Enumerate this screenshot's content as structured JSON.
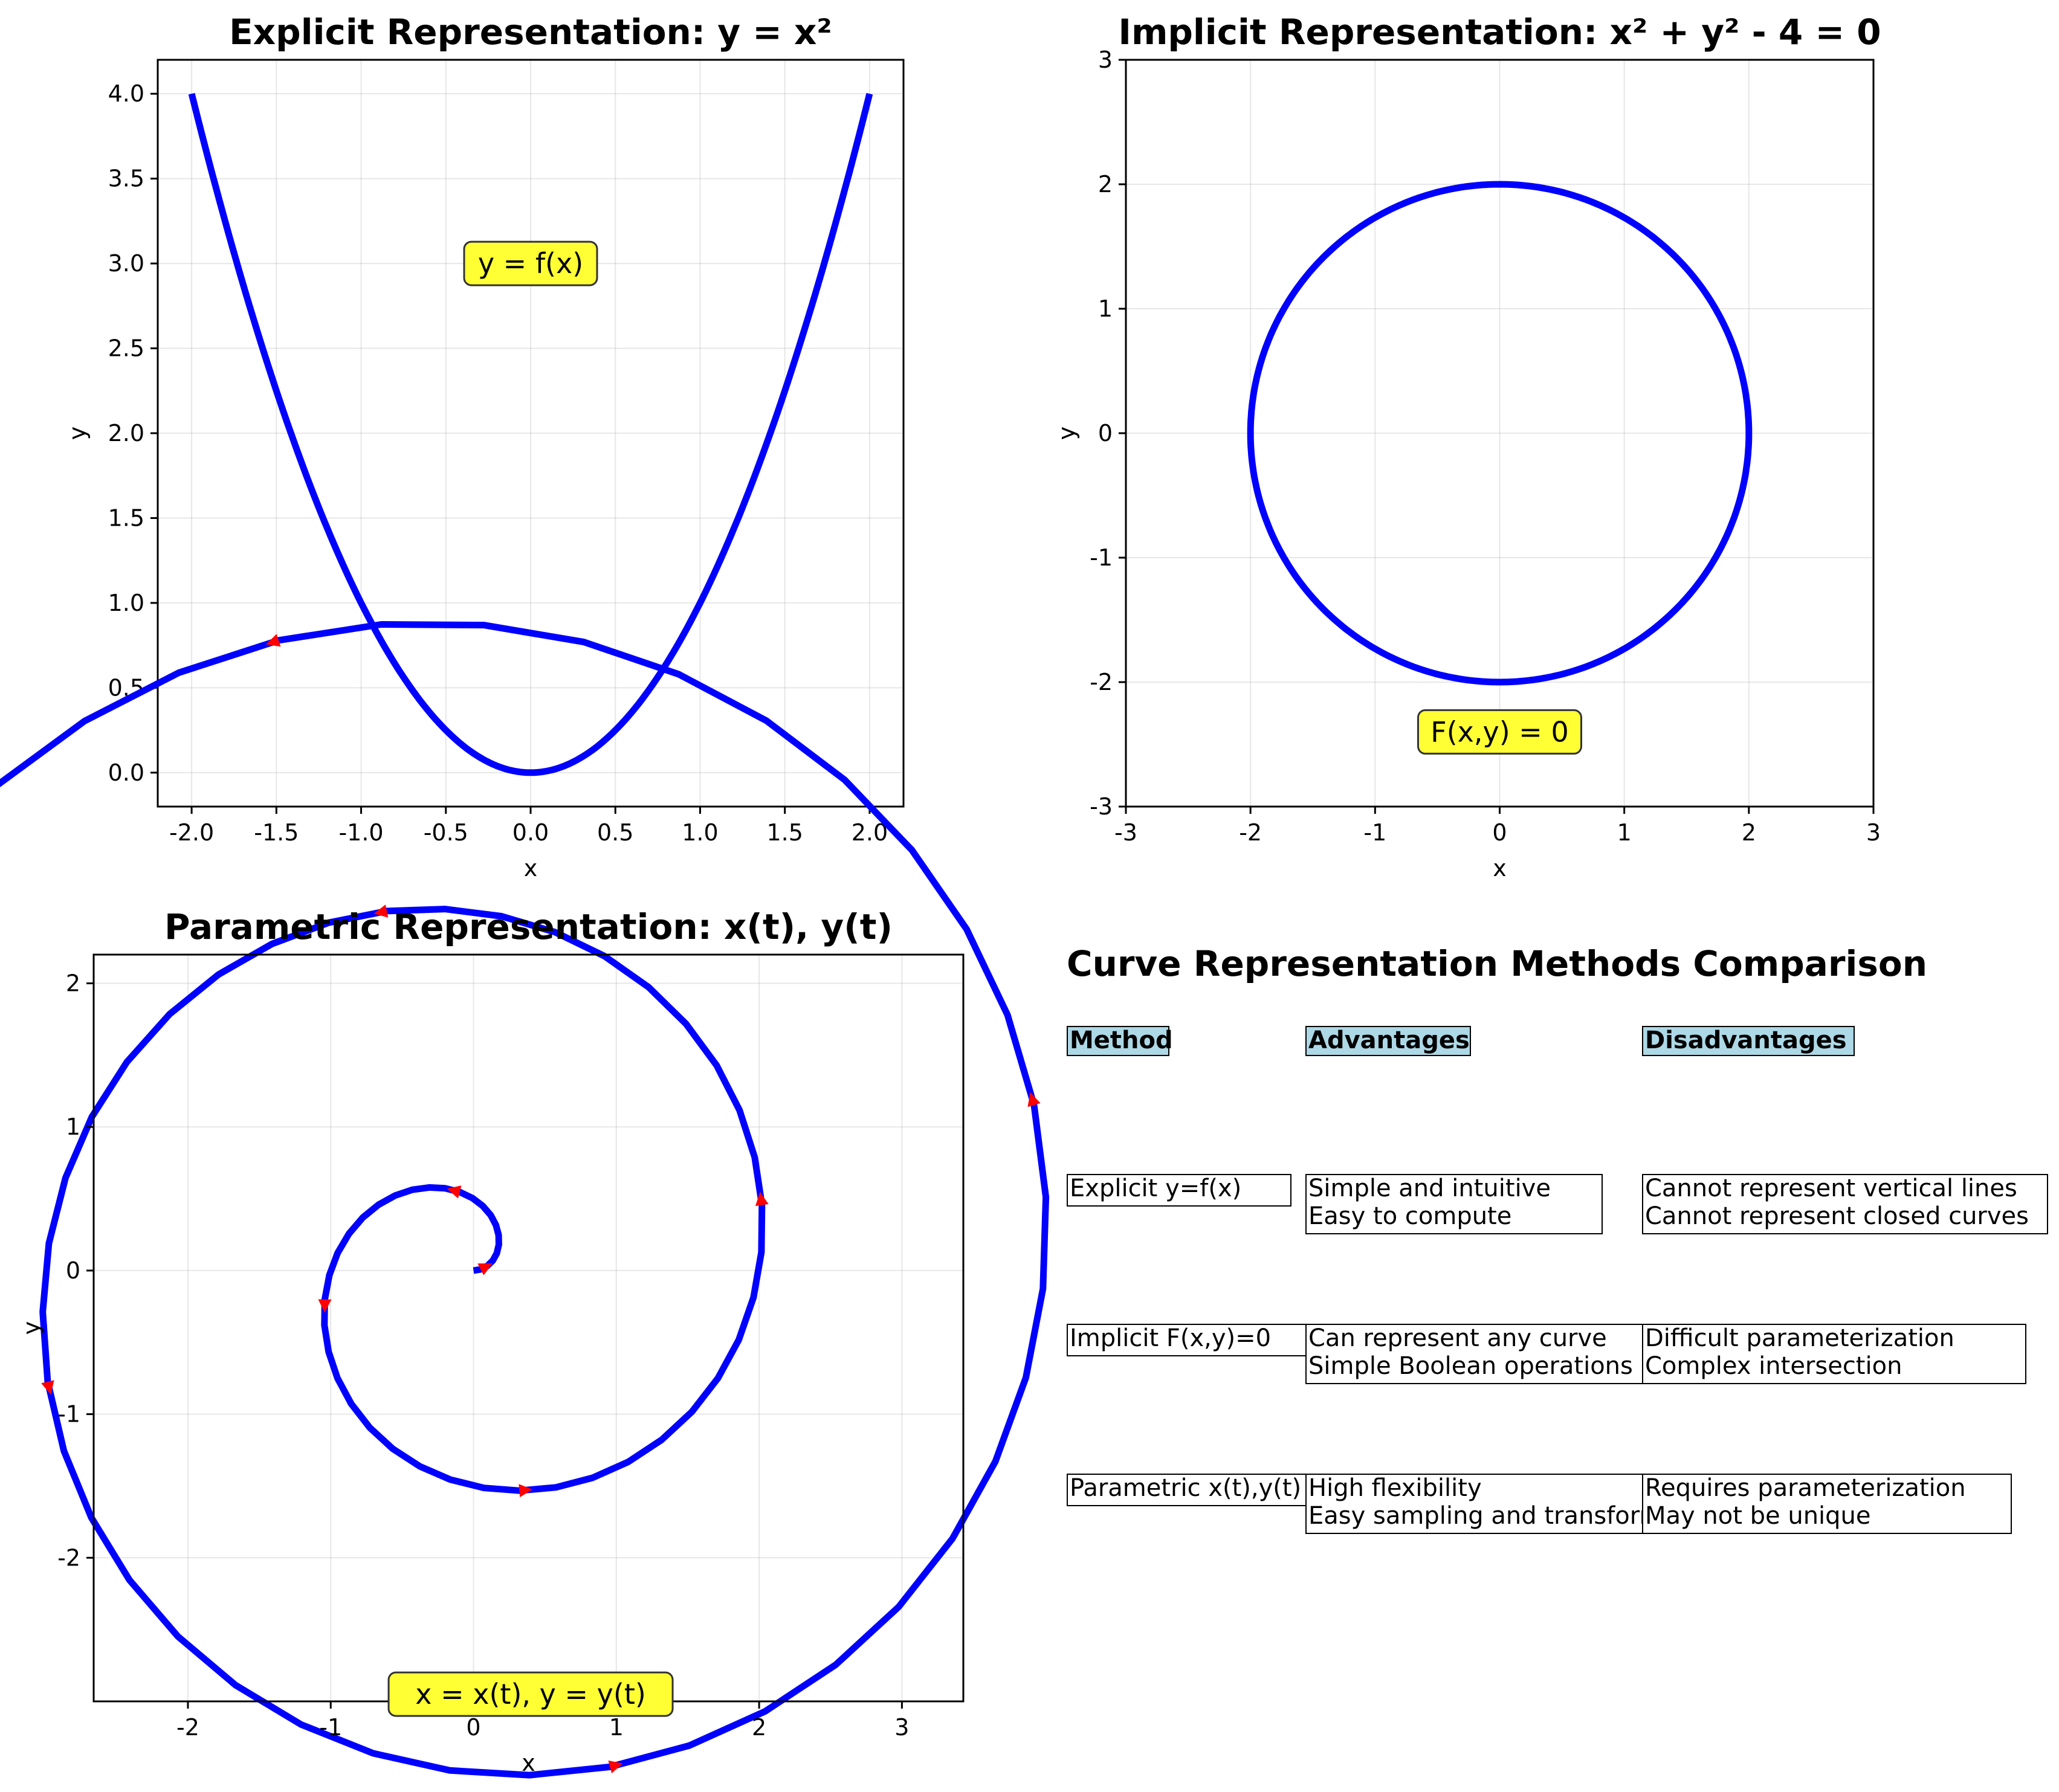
{
  "colors": {
    "curve": "#0000ff",
    "arrow": "#ff0000",
    "annotation": "#ffff33",
    "table_header": "#add8e6"
  },
  "chart_data": [
    {
      "id": "explicit",
      "type": "line",
      "title": "Explicit Representation: y = x²",
      "xlabel": "x",
      "ylabel": "y",
      "xlim": [
        -2.2,
        2.2
      ],
      "ylim": [
        -0.2,
        4.2
      ],
      "xticks": [
        -2.0,
        -1.5,
        -1.0,
        -0.5,
        0.0,
        0.5,
        1.0,
        1.5,
        2.0
      ],
      "xtick_labels": [
        "-2.0",
        "-1.5",
        "-1.0",
        "-0.5",
        "0.0",
        "0.5",
        "1.0",
        "1.5",
        "2.0"
      ],
      "yticks": [
        0.0,
        0.5,
        1.0,
        1.5,
        2.0,
        2.5,
        3.0,
        3.5,
        4.0
      ],
      "ytick_labels": [
        "0.0",
        "0.5",
        "1.0",
        "1.5",
        "2.0",
        "2.5",
        "3.0",
        "3.5",
        "4.0"
      ],
      "grid": true,
      "series": [
        {
          "function": "y = x^2",
          "x_range": [
            -2,
            2
          ]
        }
      ],
      "annotation": {
        "text": "y = f(x)",
        "x": 0,
        "y": 3
      }
    },
    {
      "id": "implicit",
      "type": "line",
      "title": "Implicit Representation: x² + y² - 4 = 0",
      "xlabel": "x",
      "ylabel": "y",
      "xlim": [
        -3,
        3
      ],
      "ylim": [
        -3,
        3
      ],
      "xticks": [
        -3,
        -2,
        -1,
        0,
        1,
        2,
        3
      ],
      "xtick_labels": [
        "-3",
        "-2",
        "-1",
        "0",
        "1",
        "2",
        "3"
      ],
      "yticks": [
        -3,
        -2,
        -1,
        0,
        1,
        2,
        3
      ],
      "ytick_labels": [
        "-3",
        "-2",
        "-1",
        "0",
        "1",
        "2",
        "3"
      ],
      "grid": true,
      "series": [
        {
          "function": "x^2 + y^2 - 4 = 0",
          "radius": 2
        }
      ],
      "annotation": {
        "text": "F(x,y) = 0",
        "x": 0,
        "y": -2.4
      }
    },
    {
      "id": "parametric",
      "type": "line",
      "title": "Parametric Representation: x(t), y(t)",
      "xlabel": "x",
      "ylabel": "y",
      "xlim": [
        -2.66,
        3.43
      ],
      "ylim": [
        -3.0,
        2.2
      ],
      "xticks": [
        -2,
        -1,
        0,
        1,
        2,
        3
      ],
      "xtick_labels": [
        "-2",
        "-1",
        "0",
        "1",
        "2",
        "3"
      ],
      "yticks": [
        -2,
        -1,
        0,
        1,
        2
      ],
      "ytick_labels": [
        "-2",
        "-1",
        "0",
        "1",
        "2"
      ],
      "grid": true,
      "series": [
        {
          "function": "x = (t/(2π)) cos t, y = (t/(2π)) sin t",
          "t_range": [
            0,
            6.2832
          ],
          "samples": 100,
          "arrow_every": 10
        }
      ],
      "annotation": {
        "text": "x = x(t), y = y(t)",
        "x": 0.4,
        "y": -2.95
      }
    }
  ],
  "comparison": {
    "title": "Curve Representation Methods Comparison",
    "headers": [
      "Method",
      "Advantages",
      "Disadvantages"
    ],
    "rows": [
      [
        "Explicit y=f(x)",
        "Simple and intuitive\nEasy to compute",
        "Cannot represent vertical lines\nCannot represent closed curves"
      ],
      [
        "Implicit F(x,y)=0",
        "Can represent any curve\nSimple Boolean operations",
        "Difficult parameterization\nComplex intersection"
      ],
      [
        "Parametric x(t),y(t)",
        "High flexibility\nEasy sampling and transformation",
        "Requires parameterization\nMay not be unique"
      ]
    ]
  }
}
